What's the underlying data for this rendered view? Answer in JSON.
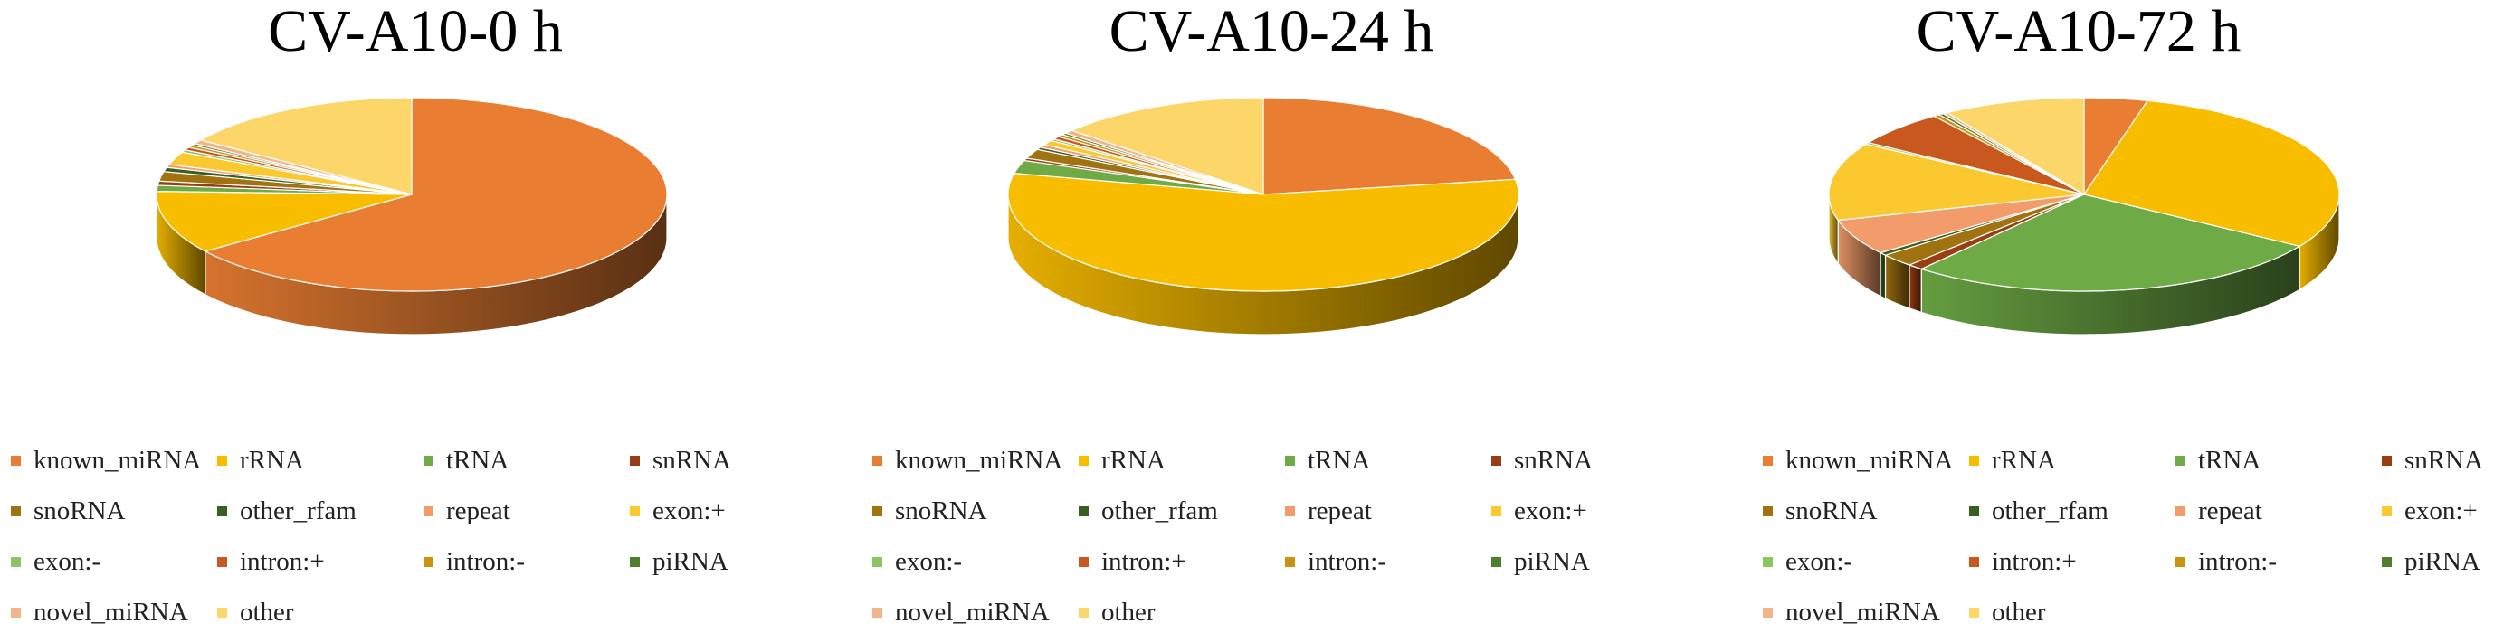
{
  "colors": {
    "known_miRNA": "#E97D32",
    "rRNA": "#F9BD00",
    "tRNA": "#6EAB46",
    "snRNA": "#993E12",
    "snoRNA": "#A07310",
    "other_rfam": "#3A5F23",
    "repeat": "#F19C6A",
    "exon:+": "#FAC930",
    "exon:-": "#8BC463",
    "intron:+": "#C9581E",
    "intron:-": "#C99310",
    "piRNA": "#4E7E2E",
    "novel_miRNA": "#F4B489",
    "other": "#FCD669"
  },
  "legend_labels": [
    "known_miRNA",
    "rRNA",
    "tRNA",
    "snRNA",
    "snoRNA",
    "other_rfam",
    "repeat",
    "exon:+",
    "exon:-",
    "intron:+",
    "intron:-",
    "piRNA",
    "novel_miRNA",
    "other"
  ],
  "chart_data": [
    {
      "type": "pie",
      "title": "CV-A10-0 h",
      "legend_position": "bottom",
      "categories": [
        "known_miRNA",
        "rRNA",
        "tRNA",
        "snRNA",
        "snoRNA",
        "other_rfam",
        "repeat",
        "exon:+",
        "exon:-",
        "intron:+",
        "intron:-",
        "piRNA",
        "novel_miRNA",
        "other"
      ],
      "values": [
        65.0,
        10.5,
        1.0,
        0.7,
        1.6,
        0.7,
        0.5,
        2.2,
        0.4,
        0.5,
        0.4,
        0.3,
        0.7,
        15.5
      ]
    },
    {
      "type": "pie",
      "title": "CV-A10-24 h",
      "legend_position": "bottom",
      "categories": [
        "known_miRNA",
        "rRNA",
        "tRNA",
        "snRNA",
        "snoRNA",
        "other_rfam",
        "repeat",
        "exon:+",
        "exon:-",
        "intron:+",
        "intron:-",
        "piRNA",
        "novel_miRNA",
        "other"
      ],
      "values": [
        22.5,
        56.0,
        2.2,
        0.4,
        1.6,
        0.4,
        0.5,
        0.8,
        0.3,
        0.5,
        0.4,
        0.3,
        0.6,
        13.5
      ]
    },
    {
      "type": "pie",
      "title": "CV-A10-72 h",
      "legend_position": "bottom",
      "categories": [
        "known_miRNA",
        "rRNA",
        "tRNA",
        "snRNA",
        "snoRNA",
        "other_rfam",
        "repeat",
        "exon:+",
        "exon:-",
        "intron:+",
        "intron:-",
        "piRNA",
        "novel_miRNA",
        "other"
      ],
      "values": [
        4.0,
        30.0,
        27.0,
        1.0,
        2.2,
        0.5,
        6.0,
        13.0,
        0.3,
        6.0,
        0.4,
        0.3,
        0.3,
        9.0
      ]
    }
  ]
}
